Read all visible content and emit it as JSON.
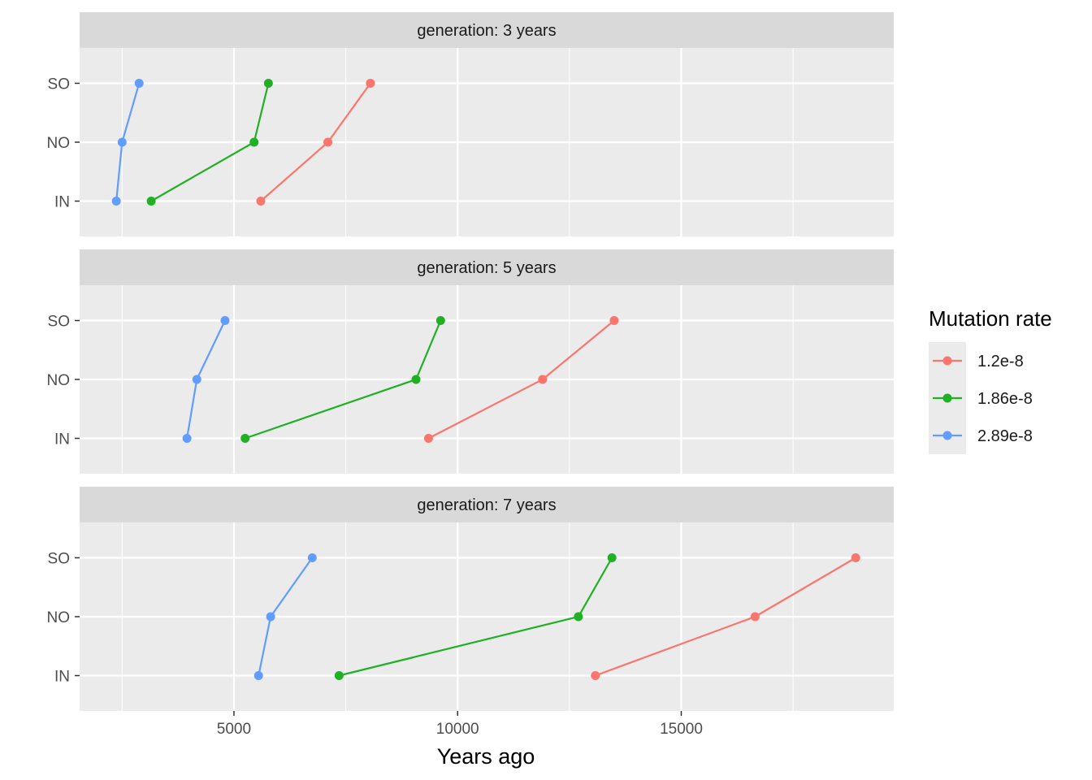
{
  "chart_data": {
    "type": "line",
    "facet_variable": "generation",
    "panels": [
      {
        "label": "generation: 3 years",
        "series": [
          {
            "name": "1.2e-8",
            "points": [
              [
                "IN",
                5600
              ],
              [
                "NO",
                7100
              ],
              [
                "SO",
                8050
              ]
            ]
          },
          {
            "name": "1.86e-8",
            "points": [
              [
                "IN",
                3150
              ],
              [
                "NO",
                5450
              ],
              [
                "SO",
                5770
              ]
            ]
          },
          {
            "name": "2.89e-8",
            "points": [
              [
                "IN",
                2370
              ],
              [
                "NO",
                2500
              ],
              [
                "SO",
                2880
              ]
            ]
          }
        ]
      },
      {
        "label": "generation: 5 years",
        "series": [
          {
            "name": "1.2e-8",
            "points": [
              [
                "IN",
                9350
              ],
              [
                "NO",
                11900
              ],
              [
                "SO",
                13500
              ]
            ]
          },
          {
            "name": "1.86e-8",
            "points": [
              [
                "IN",
                5250
              ],
              [
                "NO",
                9070
              ],
              [
                "SO",
                9620
              ]
            ]
          },
          {
            "name": "2.89e-8",
            "points": [
              [
                "IN",
                3950
              ],
              [
                "NO",
                4170
              ],
              [
                "SO",
                4800
              ]
            ]
          }
        ]
      },
      {
        "label": "generation: 7 years",
        "series": [
          {
            "name": "1.2e-8",
            "points": [
              [
                "IN",
                13080
              ],
              [
                "NO",
                16650
              ],
              [
                "SO",
                18900
              ]
            ]
          },
          {
            "name": "1.86e-8",
            "points": [
              [
                "IN",
                7350
              ],
              [
                "NO",
                12700
              ],
              [
                "SO",
                13450
              ]
            ]
          },
          {
            "name": "2.89e-8",
            "points": [
              [
                "IN",
                5550
              ],
              [
                "NO",
                5820
              ],
              [
                "SO",
                6750
              ]
            ]
          }
        ]
      }
    ],
    "categories": [
      "IN",
      "NO",
      "SO"
    ],
    "xlabel": "Years ago",
    "ylabel": "",
    "xlim": [
      1550,
      19750
    ],
    "x_ticks": [
      5000,
      10000,
      15000
    ],
    "x_minor_ticks": [
      2500,
      7500,
      12500,
      17500
    ],
    "grid": true,
    "legend": {
      "title": "Mutation rate",
      "position": "right",
      "entries": [
        "1.2e-8",
        "1.86e-8",
        "2.89e-8"
      ]
    },
    "colors": {
      "1.2e-8": "#F8766D",
      "1.86e-8": "#1FB024",
      "2.89e-8": "#619CFF"
    }
  }
}
